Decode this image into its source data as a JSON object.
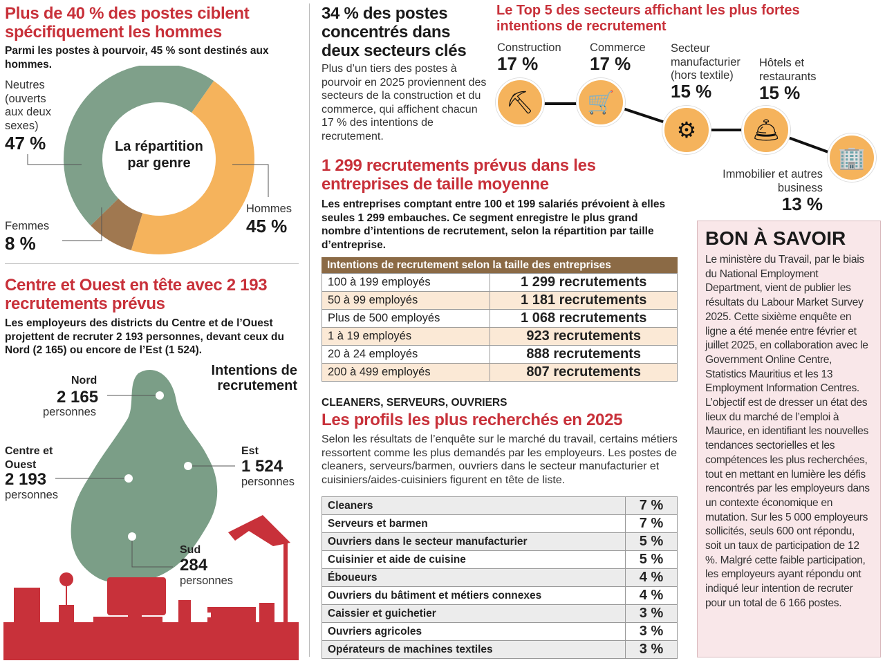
{
  "gender": {
    "title": "Plus de 40 % des postes ciblent spécifiquement les hommes",
    "lead": "Parmi les postes à pourvoir, 45 % sont destinés aux hommes.",
    "center": "La répartition par genre",
    "neutres_label": "Neutres (ouverts aux deux sexes)",
    "neutres_pct": "47 %",
    "femmes_label": "Femmes",
    "femmes_pct": "8 %",
    "hommes_label": "Hommes",
    "hommes_pct": "45 %"
  },
  "chart_data": {
    "type": "pie",
    "title": "La répartition par genre",
    "categories": [
      "Hommes",
      "Femmes",
      "Neutres (ouverts aux deux sexes)"
    ],
    "values": [
      45,
      8,
      47
    ],
    "colors": [
      "#f5b35c",
      "#a07850",
      "#7fa08a"
    ]
  },
  "regions": {
    "title": "Centre et Ouest en tête avec 2 193 recrutements prévus",
    "lead": "Les employeurs des districts du Centre et de l’Ouest projettent de recruter 2 193 personnes, devant ceux du Nord (2 165) ou encore de l’Est (1 524).",
    "map_title": "Intentions de recrutement",
    "nord": {
      "name": "Nord",
      "value": "2 165",
      "unit": "personnes"
    },
    "centre": {
      "name": "Centre et Ouest",
      "value": "2 193",
      "unit": "personnes"
    },
    "est": {
      "name": "Est",
      "value": "1 524",
      "unit": "personnes"
    },
    "sud": {
      "name": "Sud",
      "value": "284",
      "unit": "personnes"
    }
  },
  "sectors_key": {
    "title": "34 % des postes concentrés dans deux secteurs clés",
    "body": "Plus d’un tiers des postes à pourvoir en 2025 proviennent des secteurs de la construction et du commerce, qui affichent chacun 17 % des intentions de recrutement."
  },
  "top5": {
    "title": "Le Top 5 des secteurs affichant les plus fortes intentions de recrutement",
    "items": [
      {
        "label": "Construction",
        "pct": "17 %",
        "icon": "excavator-icon"
      },
      {
        "label": "Commerce",
        "pct": "17 %",
        "icon": "shopping-cart-icon"
      },
      {
        "label": "Secteur manufacturier (hors textile)",
        "pct": "15 %",
        "icon": "gears-icon"
      },
      {
        "label": "Hôtels et restaurants",
        "pct": "15 %",
        "icon": "cloche-icon"
      },
      {
        "label": "Immobilier et autres business",
        "pct": "13 %",
        "icon": "buildings-icon"
      }
    ]
  },
  "size": {
    "title": "1 299 recrutements prévus dans les entreprises de taille moyenne",
    "lead": "Les entreprises comptant entre 100 et 199 salariés prévoient à elles seules 1 299 embauches. Ce segment enregistre le plus grand nombre d’intentions de recrutement, selon la répartition par taille d’entreprise.",
    "table_header": "Intentions de recrutement selon la taille des entreprises",
    "rows": [
      {
        "size": "100 à 199 employés",
        "value": "1 299 recrutements"
      },
      {
        "size": "50 à 99 employés",
        "value": "1 181 recrutements"
      },
      {
        "size": "Plus de 500 employés",
        "value": "1 068 recrutements"
      },
      {
        "size": "1 à 19 employés",
        "value": "923 recrutements"
      },
      {
        "size": "20 à 24 employés",
        "value": "888 recrutements"
      },
      {
        "size": "200 à 499 employés",
        "value": "807 recrutements"
      }
    ]
  },
  "profiles": {
    "kicker": "CLEANERS, SERVEURS, OUVRIERS",
    "title": "Les profils les plus recherchés en 2025",
    "body": "Selon les résultats de l’enquête sur le marché du travail, certains métiers ressortent comme les plus demandés par les employeurs. Les postes de cleaners, serveurs/barmen, ouvriers dans le secteur manufacturier et cuisiniers/aides-cuisiniers figurent en tête de liste.",
    "rows": [
      {
        "job": "Cleaners",
        "pct": "7 %"
      },
      {
        "job": "Serveurs et barmen",
        "pct": "7 %"
      },
      {
        "job": "Ouvriers dans le secteur manufacturier",
        "pct": "5 %"
      },
      {
        "job": "Cuisinier et aide de cuisine",
        "pct": "5 %"
      },
      {
        "job": "Éboueurs",
        "pct": "4 %"
      },
      {
        "job": "Ouvriers du bâtiment et métiers connexes",
        "pct": "4 %"
      },
      {
        "job": "Caissier et guichetier",
        "pct": "3 %"
      },
      {
        "job": "Ouvriers agricoles",
        "pct": "3 %"
      },
      {
        "job": "Opérateurs de machines textiles",
        "pct": "3 %"
      }
    ]
  },
  "bon": {
    "title": "BON À SAVOIR",
    "body": "Le ministère du Travail, par le biais du National Employment Department, vient de publier les résultats du Labour Market Survey 2025. Cette sixième enquête en ligne a été menée entre février et juillet 2025, en collaboration avec le Government Online Centre, Statistics Mauritius et les 13 Employment Information Centres. L’objectif est de dresser un état des lieux du marché de l’emploi à Maurice, en identifiant les nouvelles tendances sectorielles et les compétences les plus recherchées, tout en mettant en lumière les défis rencontrés par les employeurs dans un contexte économique en mutation. Sur les 5 000 employeurs sollicités, seuls 600 ont répondu, soit un taux de participation de 12 %. Malgré cette faible participation, les employeurs ayant répondu ont indiqué leur intention de recruter pour un total de 6 166 postes."
  }
}
